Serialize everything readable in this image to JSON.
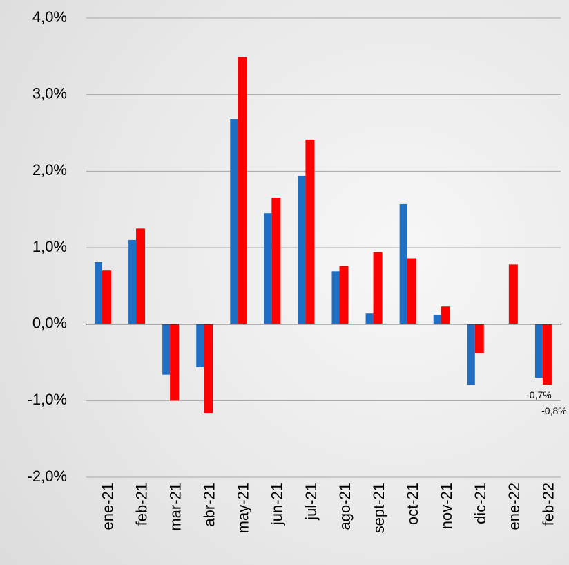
{
  "chart_data": {
    "type": "bar",
    "categories": [
      "ene-21",
      "feb-21",
      "mar-21",
      "abr-21",
      "may-21",
      "jun-21",
      "jul-21",
      "ago-21",
      "sept-21",
      "oct-21",
      "nov-21",
      "dic-21",
      "ene-22",
      "feb-22"
    ],
    "series": [
      {
        "color": "#1f6fc5",
        "values": [
          0.81,
          1.1,
          -0.66,
          -0.56,
          2.68,
          1.45,
          1.94,
          0.69,
          0.14,
          1.57,
          0.12,
          -0.79,
          0,
          -0.7
        ],
        "value_labels": [
          null,
          null,
          null,
          null,
          null,
          null,
          null,
          null,
          null,
          null,
          null,
          null,
          null,
          "-0,7%"
        ]
      },
      {
        "color": "#ff0000",
        "values": [
          0.7,
          1.25,
          -1.0,
          -1.16,
          3.49,
          1.65,
          2.41,
          0.76,
          0.94,
          0.86,
          0.23,
          -0.38,
          0.78,
          -0.79
        ],
        "value_labels": [
          null,
          null,
          null,
          null,
          null,
          null,
          null,
          null,
          null,
          null,
          null,
          null,
          null,
          "-0,8%"
        ]
      }
    ],
    "ylim": [
      -2,
      4
    ],
    "yticks": [
      {
        "value": -2,
        "label": "-2,0%"
      },
      {
        "value": -1,
        "label": "-1,0%"
      },
      {
        "value": 0,
        "label": "0,0%"
      },
      {
        "value": 1,
        "label": "1,0%"
      },
      {
        "value": 2,
        "label": "2,0%"
      },
      {
        "value": 3,
        "label": "3,0%"
      },
      {
        "value": 4,
        "label": "4,0%"
      }
    ],
    "grid": true
  }
}
